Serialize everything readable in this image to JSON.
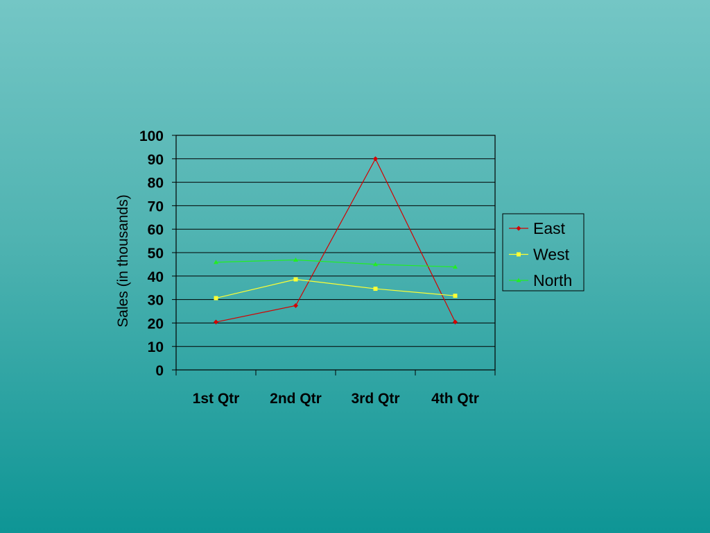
{
  "chart_data": {
    "type": "line",
    "categories": [
      "1st Qtr",
      "2nd Qtr",
      "3rd Qtr",
      "4th Qtr"
    ],
    "series": [
      {
        "name": "East",
        "values": [
          20.4,
          27.4,
          90,
          20.4
        ],
        "color": "#d40000",
        "marker": "diamond"
      },
      {
        "name": "West",
        "values": [
          30.6,
          38.6,
          34.6,
          31.6
        ],
        "color": "#ffff33",
        "marker": "square"
      },
      {
        "name": "North",
        "values": [
          45.9,
          46.9,
          45,
          43.9
        ],
        "color": "#22ee22",
        "marker": "triangle"
      }
    ],
    "ylabel": "Sales (in thousands)",
    "ylim": [
      0,
      100
    ],
    "yticks": [
      0,
      10,
      20,
      30,
      40,
      50,
      60,
      70,
      80,
      90,
      100
    ],
    "grid": true,
    "legend_position": "right"
  }
}
